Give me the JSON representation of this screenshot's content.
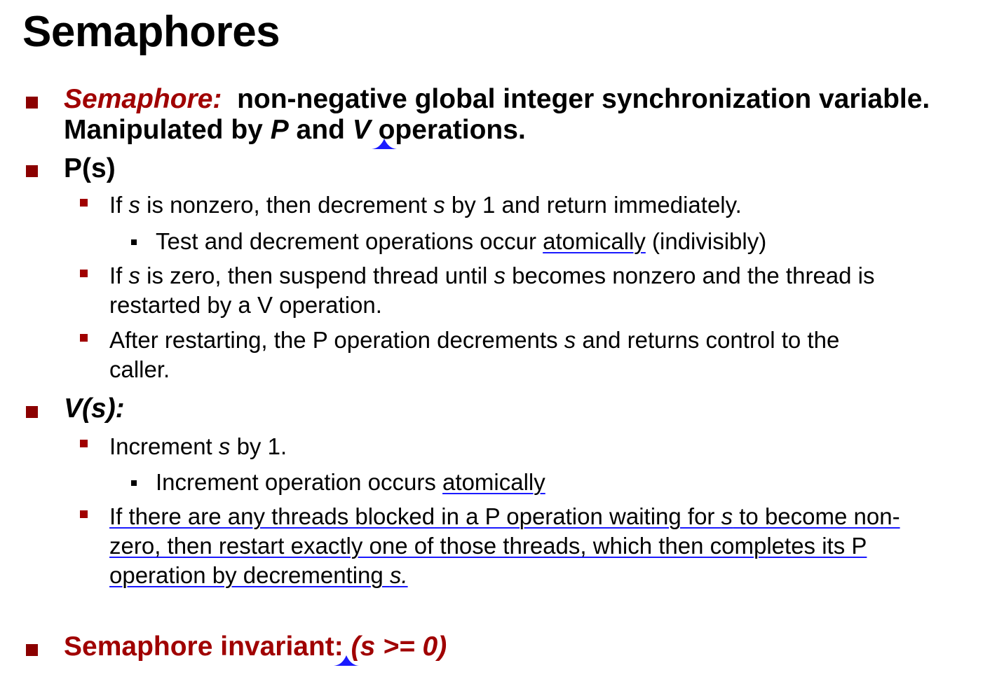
{
  "slide": {
    "title": "Semaphores",
    "b1": {
      "term": "Semaphore:",
      "def": "non-negative global integer synchronization variable.",
      "l2_a": "Manipulated by ",
      "l2_p": "P",
      "l2_b": " and ",
      "l2_v": "V",
      "l2_c": " operations."
    },
    "b2": {
      "label": "P(s)",
      "s1_a": "If ",
      "s1_s": "s",
      "s1_b": " is nonzero, then decrement ",
      "s1_s2": "s",
      "s1_c": " by 1 and return immediately.",
      "s1_sub_a": "Test and decrement operations occur ",
      "s1_sub_ul": "atomically",
      "s1_sub_b": " (indivisibly)",
      "s2_a": "If ",
      "s2_s": "s",
      "s2_b": " is zero, then suspend thread until ",
      "s2_s2": "s",
      "s2_c": " becomes nonzero and the thread is",
      "s2_line2": "restarted by a V operation.",
      "s3_a": "After restarting, the P operation decrements ",
      "s3_s": "s",
      "s3_b": " and returns control to the",
      "s3_line2": "caller."
    },
    "b3": {
      "label": "V(s):",
      "s1_a": "Increment ",
      "s1_s": "s",
      "s1_b": " by 1.",
      "s1_sub_a": "Increment operation occurs ",
      "s1_sub_ul": "atomically",
      "s2_l1_a": "If there are any threads blocked in a P operation waiting for ",
      "s2_l1_s": "s",
      "s2_l1_b": " to become non-",
      "s2_l2": "zero, then restart exactly one of those threads, which then completes its P",
      "s2_l3_a": "operation by decrementing ",
      "s2_l3_s": "s."
    },
    "b4": {
      "label": "Semaphore invariant: ",
      "expr": "(s >= 0)"
    },
    "colors": {
      "accent": "#a00000",
      "bullet_l1": "#8b0000",
      "underline": "#1a1aff"
    }
  }
}
